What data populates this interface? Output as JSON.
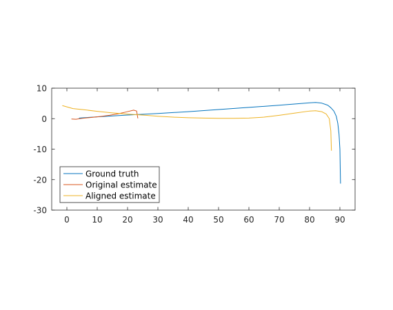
{
  "chart_data": {
    "type": "line",
    "title": "",
    "xlabel": "",
    "ylabel": "",
    "xlim": [
      -5,
      95
    ],
    "ylim": [
      -30,
      10
    ],
    "xticks": [
      0,
      10,
      20,
      30,
      40,
      50,
      60,
      70,
      80,
      90
    ],
    "yticks": [
      -30,
      -20,
      -10,
      0,
      10
    ],
    "xtick_labels": [
      "0",
      "10",
      "20",
      "30",
      "40",
      "50",
      "60",
      "70",
      "80",
      "90"
    ],
    "ytick_labels": [
      "-30",
      "-20",
      "-10",
      "0",
      "10"
    ],
    "grid": false,
    "legend_position": "bottom-left",
    "series": [
      {
        "name": "Ground truth",
        "color": "#0072BD",
        "x": [
          4,
          10,
          20,
          30,
          40,
          50,
          60,
          70,
          75,
          80,
          82,
          84,
          86,
          87,
          88,
          88.8,
          89.3,
          89.7,
          90,
          90.1,
          90.2
        ],
        "y": [
          0.2,
          0.6,
          1.2,
          1.7,
          2.3,
          3.0,
          3.7,
          4.4,
          4.8,
          5.2,
          5.3,
          5.1,
          4.4,
          3.6,
          2.5,
          0.8,
          -1.5,
          -5,
          -10,
          -16,
          -21.3
        ]
      },
      {
        "name": "Original estimate",
        "color": "#D95319",
        "x": [
          1.5,
          3,
          5,
          8,
          11,
          14,
          17,
          20,
          22,
          23,
          23.2,
          23.4
        ],
        "y": [
          -0.1,
          -0.2,
          0.1,
          0.4,
          0.7,
          1.1,
          1.6,
          2.3,
          2.8,
          2.5,
          1.2,
          0.1
        ]
      },
      {
        "name": "Aligned estimate",
        "color": "#EDB120",
        "x": [
          -1.5,
          2,
          5,
          10,
          15,
          20,
          25,
          30,
          35,
          40,
          45,
          50,
          55,
          60,
          65,
          70,
          75,
          80,
          82,
          84,
          85.5,
          86.5,
          87,
          87.2
        ],
        "y": [
          4.3,
          3.3,
          3.0,
          2.4,
          1.9,
          1.5,
          1.2,
          0.8,
          0.5,
          0.3,
          0.2,
          0.1,
          0.1,
          0.2,
          0.5,
          1.1,
          1.8,
          2.5,
          2.6,
          2.3,
          1.5,
          0,
          -4,
          -10.5
        ]
      }
    ]
  }
}
